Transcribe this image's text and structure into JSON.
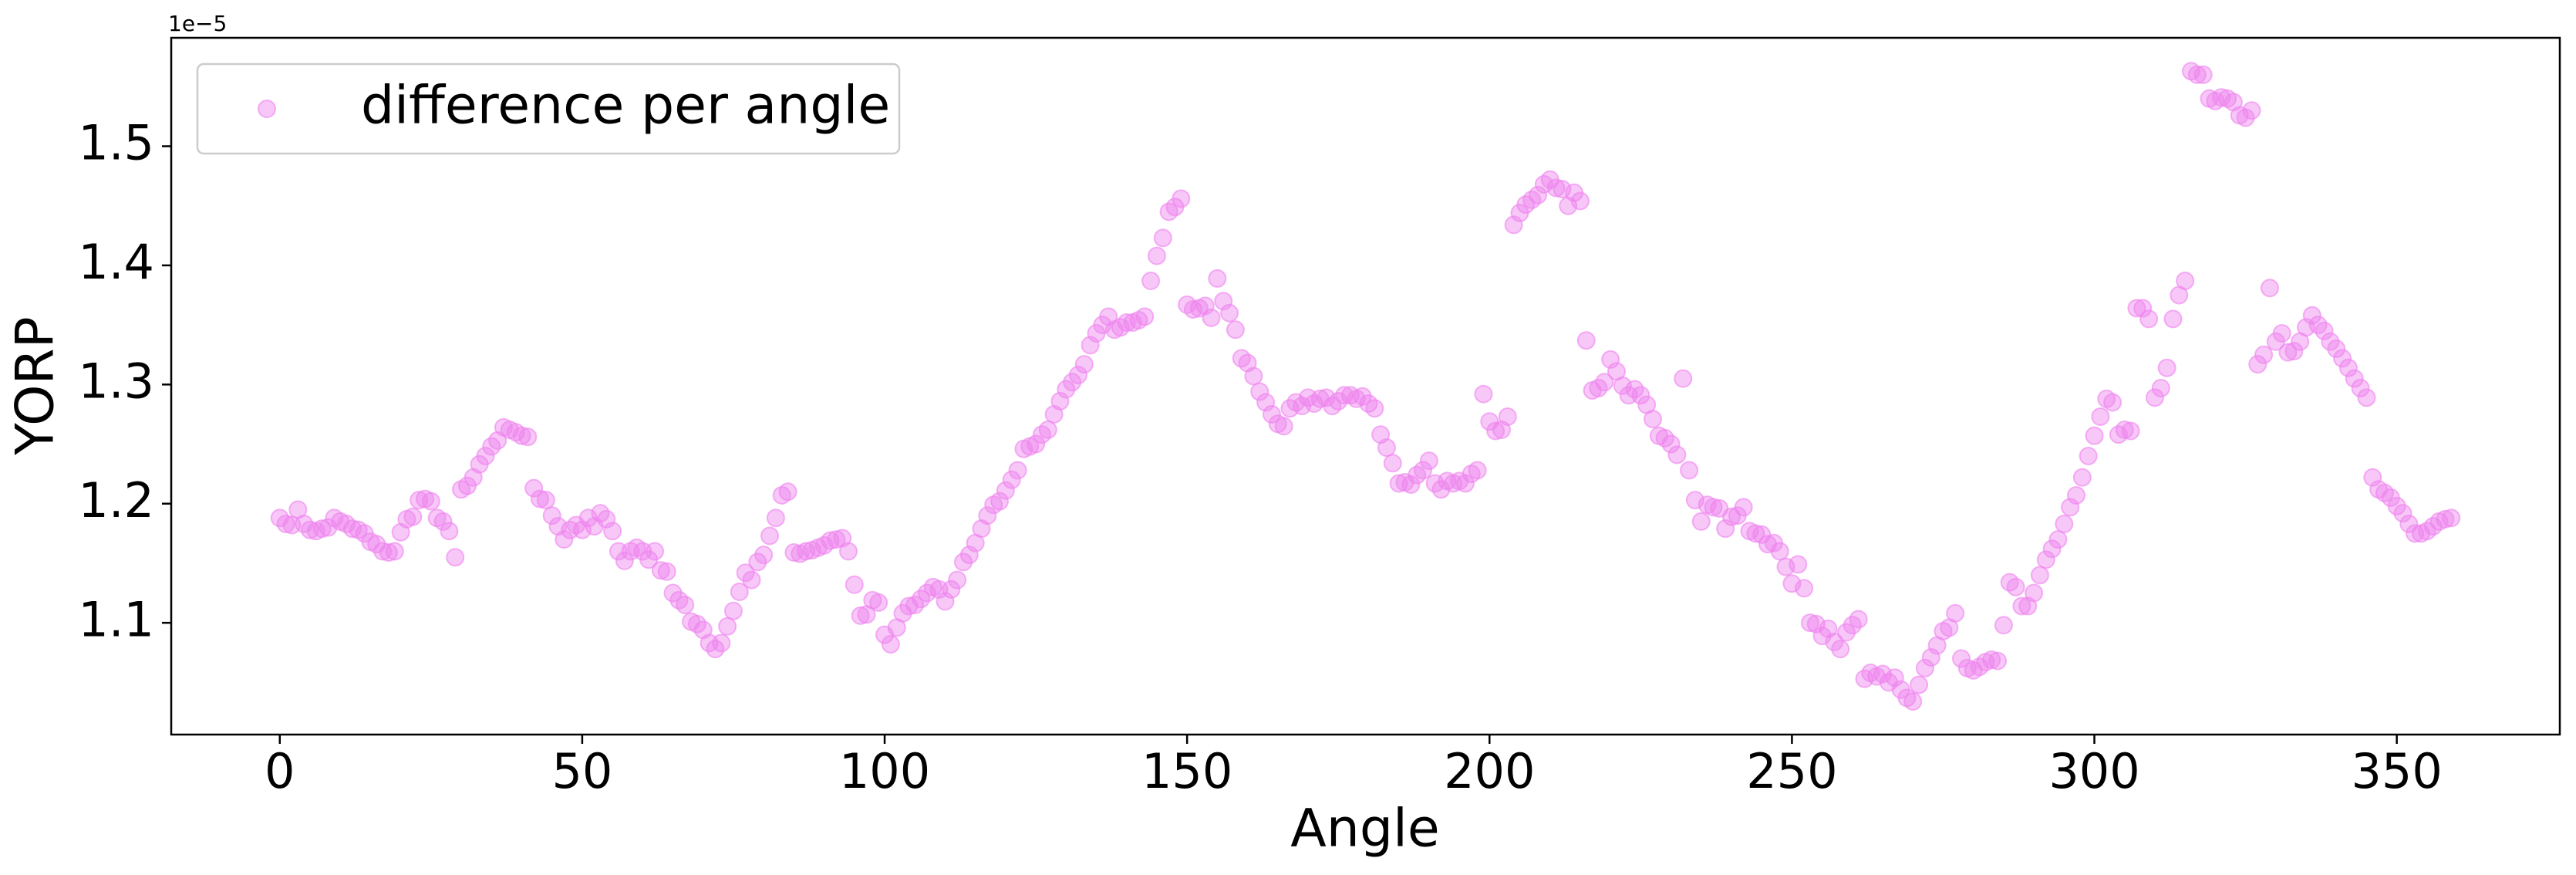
{
  "chart_data": {
    "type": "scatter",
    "xlabel": "Angle",
    "ylabel": "YORP",
    "y_offset_label": "1e−5",
    "xlim": [
      -17.95,
      376.95
    ],
    "ylim": [
      1.0062,
      1.591
    ],
    "xticks": [
      0,
      50,
      100,
      150,
      200,
      250,
      300,
      350
    ],
    "yticks": [
      1.1,
      1.2,
      1.3,
      1.4,
      1.5
    ],
    "legend": "upper left",
    "series": [
      {
        "name": "difference per angle",
        "color": "#ee82ee",
        "x": [
          0,
          1,
          2,
          3,
          4,
          5,
          6,
          7,
          8,
          9,
          10,
          11,
          12,
          13,
          14,
          15,
          16,
          17,
          18,
          19,
          20,
          21,
          22,
          23,
          24,
          25,
          26,
          27,
          28,
          29,
          30,
          31,
          32,
          33,
          34,
          35,
          36,
          37,
          38,
          39,
          40,
          41,
          42,
          43,
          44,
          45,
          46,
          47,
          48,
          49,
          50,
          51,
          52,
          53,
          54,
          55,
          56,
          57,
          58,
          59,
          60,
          61,
          62,
          63,
          64,
          65,
          66,
          67,
          68,
          69,
          70,
          71,
          72,
          73,
          74,
          75,
          76,
          77,
          78,
          79,
          80,
          81,
          82,
          83,
          84,
          85,
          86,
          87,
          88,
          89,
          90,
          91,
          92,
          93,
          94,
          95,
          96,
          97,
          98,
          99,
          100,
          101,
          102,
          103,
          104,
          105,
          106,
          107,
          108,
          109,
          110,
          111,
          112,
          113,
          114,
          115,
          116,
          117,
          118,
          119,
          120,
          121,
          122,
          123,
          124,
          125,
          126,
          127,
          128,
          129,
          130,
          131,
          132,
          133,
          134,
          135,
          136,
          137,
          138,
          139,
          140,
          141,
          142,
          143,
          144,
          145,
          146,
          147,
          148,
          149,
          150,
          151,
          152,
          153,
          154,
          155,
          156,
          157,
          158,
          159,
          160,
          161,
          162,
          163,
          164,
          165,
          166,
          167,
          168,
          169,
          170,
          171,
          172,
          173,
          174,
          175,
          176,
          177,
          178,
          179,
          180,
          181,
          182,
          183,
          184,
          185,
          186,
          187,
          188,
          189,
          190,
          191,
          192,
          193,
          194,
          195,
          196,
          197,
          198,
          199,
          200,
          201,
          202,
          203,
          204,
          205,
          206,
          207,
          208,
          209,
          210,
          211,
          212,
          213,
          214,
          215,
          216,
          217,
          218,
          219,
          220,
          221,
          222,
          223,
          224,
          225,
          226,
          227,
          228,
          229,
          230,
          231,
          232,
          233,
          234,
          235,
          236,
          237,
          238,
          239,
          240,
          241,
          242,
          243,
          244,
          245,
          246,
          247,
          248,
          249,
          250,
          251,
          252,
          253,
          254,
          255,
          256,
          257,
          258,
          259,
          260,
          261,
          262,
          263,
          264,
          265,
          266,
          267,
          268,
          269,
          270,
          271,
          272,
          273,
          274,
          275,
          276,
          277,
          278,
          279,
          280,
          281,
          282,
          283,
          284,
          285,
          286,
          287,
          288,
          289,
          290,
          291,
          292,
          293,
          294,
          295,
          296,
          297,
          298,
          299,
          300,
          301,
          302,
          303,
          304,
          305,
          306,
          307,
          308,
          309,
          310,
          311,
          312,
          313,
          314,
          315,
          316,
          317,
          318,
          319,
          320,
          321,
          322,
          323,
          324,
          325,
          326,
          327,
          328,
          329,
          330,
          331,
          332,
          333,
          334,
          335,
          336,
          337,
          338,
          339,
          340,
          341,
          342,
          343,
          344,
          345,
          346,
          347,
          348,
          349,
          350,
          351,
          352,
          353,
          354,
          355,
          356,
          357,
          358,
          359
        ],
        "values": [
          1.188,
          1.183,
          1.182,
          1.195,
          1.183,
          1.178,
          1.177,
          1.179,
          1.18,
          1.188,
          1.185,
          1.183,
          1.179,
          1.178,
          1.175,
          1.168,
          1.166,
          1.16,
          1.159,
          1.16,
          1.176,
          1.187,
          1.189,
          1.203,
          1.204,
          1.202,
          1.188,
          1.185,
          1.177,
          1.155,
          1.212,
          1.215,
          1.222,
          1.233,
          1.24,
          1.248,
          1.253,
          1.264,
          1.262,
          1.26,
          1.257,
          1.256,
          1.213,
          1.204,
          1.203,
          1.19,
          1.181,
          1.17,
          1.178,
          1.182,
          1.178,
          1.188,
          1.181,
          1.192,
          1.187,
          1.177,
          1.16,
          1.152,
          1.16,
          1.163,
          1.16,
          1.153,
          1.16,
          1.144,
          1.143,
          1.125,
          1.119,
          1.115,
          1.101,
          1.099,
          1.094,
          1.083,
          1.078,
          1.083,
          1.097,
          1.11,
          1.126,
          1.142,
          1.136,
          1.151,
          1.157,
          1.173,
          1.188,
          1.207,
          1.21,
          1.159,
          1.158,
          1.16,
          1.161,
          1.163,
          1.165,
          1.169,
          1.17,
          1.171,
          1.16,
          1.132,
          1.106,
          1.107,
          1.119,
          1.117,
          1.09,
          1.082,
          1.096,
          1.108,
          1.114,
          1.115,
          1.12,
          1.125,
          1.13,
          1.128,
          1.118,
          1.128,
          1.136,
          1.151,
          1.157,
          1.167,
          1.179,
          1.19,
          1.199,
          1.202,
          1.211,
          1.22,
          1.228,
          1.246,
          1.248,
          1.25,
          1.258,
          1.262,
          1.275,
          1.286,
          1.296,
          1.302,
          1.308,
          1.317,
          1.333,
          1.343,
          1.35,
          1.357,
          1.346,
          1.348,
          1.352,
          1.352,
          1.354,
          1.357,
          1.387,
          1.408,
          1.423,
          1.445,
          1.449,
          1.456,
          1.367,
          1.363,
          1.364,
          1.366,
          1.356,
          1.389,
          1.37,
          1.36,
          1.346,
          1.322,
          1.318,
          1.307,
          1.294,
          1.285,
          1.275,
          1.267,
          1.265,
          1.28,
          1.285,
          1.282,
          1.289,
          1.284,
          1.288,
          1.289,
          1.282,
          1.286,
          1.291,
          1.291,
          1.288,
          1.29,
          1.284,
          1.28,
          1.258,
          1.247,
          1.234,
          1.217,
          1.218,
          1.216,
          1.224,
          1.228,
          1.236,
          1.217,
          1.212,
          1.219,
          1.217,
          1.219,
          1.217,
          1.225,
          1.228,
          1.292,
          1.269,
          1.261,
          1.262,
          1.273,
          1.434,
          1.444,
          1.451,
          1.455,
          1.459,
          1.468,
          1.472,
          1.465,
          1.464,
          1.45,
          1.461,
          1.454,
          1.337,
          1.295,
          1.297,
          1.302,
          1.321,
          1.311,
          1.299,
          1.291,
          1.296,
          1.291,
          1.283,
          1.271,
          1.257,
          1.255,
          1.25,
          1.241,
          1.305,
          1.228,
          1.203,
          1.185,
          1.199,
          1.197,
          1.196,
          1.179,
          1.189,
          1.19,
          1.197,
          1.177,
          1.175,
          1.174,
          1.166,
          1.167,
          1.16,
          1.147,
          1.133,
          1.149,
          1.129,
          1.1,
          1.099,
          1.089,
          1.095,
          1.084,
          1.078,
          1.092,
          1.098,
          1.103,
          1.053,
          1.058,
          1.055,
          1.057,
          1.05,
          1.054,
          1.044,
          1.037,
          1.034,
          1.048,
          1.062,
          1.071,
          1.081,
          1.093,
          1.096,
          1.108,
          1.07,
          1.062,
          1.06,
          1.063,
          1.067,
          1.069,
          1.068,
          1.098,
          1.134,
          1.13,
          1.114,
          1.114,
          1.125,
          1.14,
          1.153,
          1.162,
          1.17,
          1.183,
          1.197,
          1.207,
          1.222,
          1.24,
          1.257,
          1.273,
          1.288,
          1.285,
          1.258,
          1.262,
          1.261,
          1.364,
          1.364,
          1.355,
          1.289,
          1.297,
          1.314,
          1.355,
          1.375,
          1.387,
          1.563,
          1.56,
          1.56,
          1.54,
          1.538,
          1.541,
          1.54,
          1.537,
          1.526,
          1.524,
          1.53,
          1.317,
          1.325,
          1.381,
          1.336,
          1.343,
          1.327,
          1.328,
          1.336,
          1.348,
          1.358,
          1.35,
          1.345,
          1.336,
          1.33,
          1.322,
          1.314,
          1.305,
          1.297,
          1.289,
          1.222,
          1.212,
          1.209,
          1.205,
          1.198,
          1.192,
          1.183,
          1.175,
          1.175,
          1.177,
          1.181,
          1.185,
          1.187,
          1.188
        ]
      }
    ]
  }
}
